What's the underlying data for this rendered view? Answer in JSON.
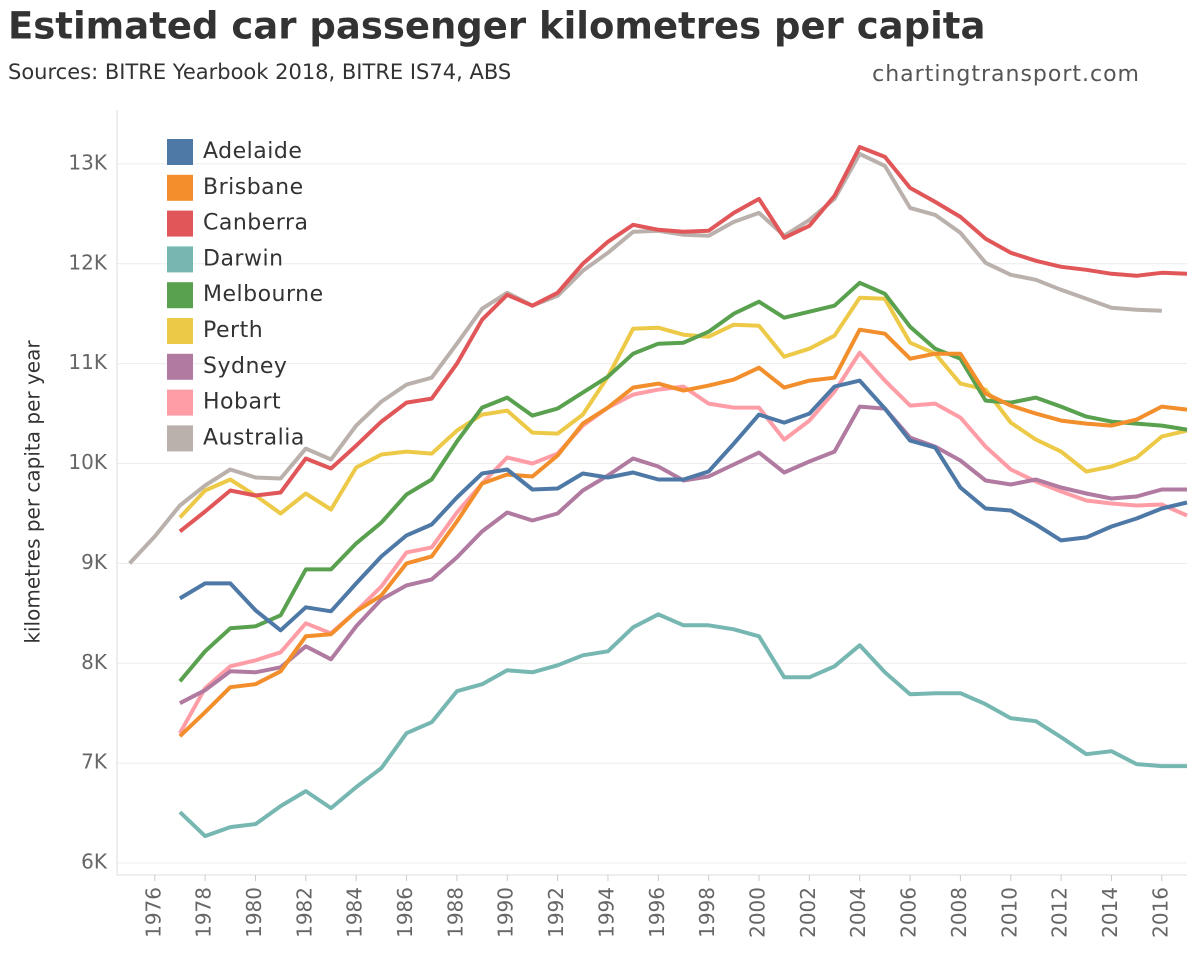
{
  "chart_data": {
    "type": "line",
    "title": "Estimated car passenger kilometres per capita",
    "subtitle": "Sources: BITRE Yearbook 2018, BITRE IS74, ABS",
    "source": "chartingtransport.com",
    "y_label": "kilometres per capita per year",
    "x": [
      1975,
      1976,
      1977,
      1978,
      1979,
      1980,
      1981,
      1982,
      1983,
      1984,
      1985,
      1986,
      1987,
      1988,
      1989,
      1990,
      1991,
      1992,
      1993,
      1994,
      1995,
      1996,
      1997,
      1998,
      1999,
      2000,
      2001,
      2002,
      2003,
      2004,
      2005,
      2006,
      2007,
      2008,
      2009,
      2010,
      2011,
      2012,
      2013,
      2014,
      2015,
      2016,
      2017
    ],
    "xlim": [
      1974.5,
      2017
    ],
    "xticks": [
      1976,
      1978,
      1980,
      1982,
      1984,
      1986,
      1988,
      1990,
      1992,
      1994,
      1996,
      1998,
      2000,
      2002,
      2004,
      2006,
      2008,
      2010,
      2012,
      2014,
      2016
    ],
    "ylim": [
      5880,
      13540
    ],
    "yticks": [
      {
        "value": 6000,
        "label": "6K"
      },
      {
        "value": 7000,
        "label": "7K"
      },
      {
        "value": 8000,
        "label": "8K"
      },
      {
        "value": 9000,
        "label": "9K"
      },
      {
        "value": 10000,
        "label": "10K"
      },
      {
        "value": 11000,
        "label": "11K"
      },
      {
        "value": 12000,
        "label": "12K"
      },
      {
        "value": 13000,
        "label": "13K"
      }
    ],
    "grid": true,
    "legend": "top-left",
    "series": [
      {
        "name": "Adelaide",
        "color": "#4e79a7",
        "values": [
          null,
          null,
          8650,
          8800,
          8800,
          8530,
          8330,
          8560,
          8520,
          8800,
          9070,
          9280,
          9390,
          9660,
          9900,
          9940,
          9740,
          9750,
          9900,
          9860,
          9910,
          9840,
          9840,
          9920,
          10200,
          10490,
          10410,
          10500,
          10770,
          10830,
          10550,
          10230,
          10160,
          9760,
          9550,
          9530,
          9390,
          9230,
          9260,
          9370,
          9450,
          9550,
          9610
        ]
      },
      {
        "name": "Brisbane",
        "color": "#f28e2b",
        "values": [
          null,
          null,
          7270,
          7510,
          7760,
          7790,
          7920,
          8270,
          8290,
          8520,
          8680,
          9000,
          9070,
          9420,
          9800,
          9890,
          9870,
          10080,
          10400,
          10560,
          10760,
          10800,
          10730,
          10780,
          10840,
          10960,
          10760,
          10830,
          10860,
          11340,
          11300,
          11050,
          11100,
          11100,
          10700,
          10580,
          10500,
          10430,
          10400,
          10380,
          10440,
          10570,
          10540
        ]
      },
      {
        "name": "Canberra",
        "color": "#e15759",
        "values": [
          null,
          null,
          9320,
          9520,
          9730,
          9680,
          9710,
          10050,
          9950,
          10180,
          10420,
          10610,
          10650,
          11000,
          11440,
          11690,
          11580,
          11710,
          12000,
          12220,
          12390,
          12340,
          12320,
          12330,
          12510,
          12650,
          12260,
          12380,
          12680,
          13170,
          13070,
          12760,
          12620,
          12470,
          12250,
          12110,
          12030,
          11970,
          11940,
          11900,
          11880,
          11910,
          11900
        ]
      },
      {
        "name": "Darwin",
        "color": "#76b7b2",
        "values": [
          null,
          null,
          6510,
          6270,
          6360,
          6390,
          6570,
          6720,
          6550,
          6760,
          6950,
          7300,
          7410,
          7720,
          7790,
          7930,
          7910,
          7980,
          8080,
          8120,
          8360,
          8490,
          8380,
          8380,
          8340,
          8270,
          7860,
          7860,
          7970,
          8180,
          7910,
          7690,
          7700,
          7700,
          7590,
          7450,
          7420,
          7260,
          7090,
          7120,
          6990,
          6970,
          6970
        ]
      },
      {
        "name": "Melbourne",
        "color": "#59a14f",
        "values": [
          null,
          null,
          7820,
          8120,
          8350,
          8370,
          8480,
          8940,
          8940,
          9200,
          9410,
          9690,
          9840,
          10220,
          10560,
          10660,
          10480,
          10550,
          10710,
          10870,
          11100,
          11200,
          11210,
          11320,
          11500,
          11620,
          11460,
          11520,
          11580,
          11810,
          11700,
          11370,
          11150,
          11050,
          10630,
          10610,
          10660,
          10570,
          10470,
          10420,
          10400,
          10380,
          10340
        ]
      },
      {
        "name": "Perth",
        "color": "#edc948",
        "values": [
          null,
          null,
          9460,
          9730,
          9840,
          9680,
          9500,
          9700,
          9540,
          9960,
          10090,
          10120,
          10100,
          10330,
          10490,
          10530,
          10310,
          10300,
          10490,
          10870,
          11350,
          11360,
          11290,
          11270,
          11390,
          11380,
          11070,
          11150,
          11280,
          11660,
          11650,
          11210,
          11100,
          10800,
          10740,
          10410,
          10240,
          10120,
          9920,
          9970,
          10060,
          10270,
          10330
        ]
      },
      {
        "name": "Sydney",
        "color": "#b07aa1",
        "values": [
          null,
          null,
          7600,
          7730,
          7920,
          7910,
          7960,
          8170,
          8040,
          8370,
          8640,
          8780,
          8840,
          9060,
          9320,
          9510,
          9430,
          9500,
          9730,
          9880,
          10050,
          9970,
          9830,
          9870,
          9990,
          10110,
          9910,
          10020,
          10120,
          10570,
          10550,
          10260,
          10170,
          10030,
          9830,
          9790,
          9840,
          9760,
          9700,
          9650,
          9670,
          9740,
          9740
        ]
      },
      {
        "name": "Hobart",
        "color": "#ff9da7",
        "values": [
          null,
          null,
          7300,
          7750,
          7970,
          8030,
          8110,
          8400,
          8300,
          8520,
          8770,
          9110,
          9160,
          9510,
          9800,
          10060,
          10000,
          10100,
          10380,
          10560,
          10690,
          10740,
          10770,
          10600,
          10560,
          10560,
          10240,
          10430,
          10720,
          11110,
          10830,
          10580,
          10600,
          10460,
          10170,
          9940,
          9820,
          9720,
          9630,
          9600,
          9580,
          9590,
          9480
        ]
      },
      {
        "name": "Australia",
        "color": "#bab0ac",
        "values": [
          9000,
          9270,
          9580,
          9780,
          9940,
          9860,
          9850,
          10150,
          10040,
          10380,
          10620,
          10790,
          10860,
          11200,
          11550,
          11710,
          11580,
          11680,
          11930,
          12110,
          12320,
          12330,
          12290,
          12280,
          12420,
          12510,
          12280,
          12440,
          12650,
          13100,
          12980,
          12560,
          12490,
          12310,
          12010,
          11890,
          11840,
          11740,
          11650,
          11560,
          11540,
          11530,
          null
        ]
      }
    ]
  }
}
